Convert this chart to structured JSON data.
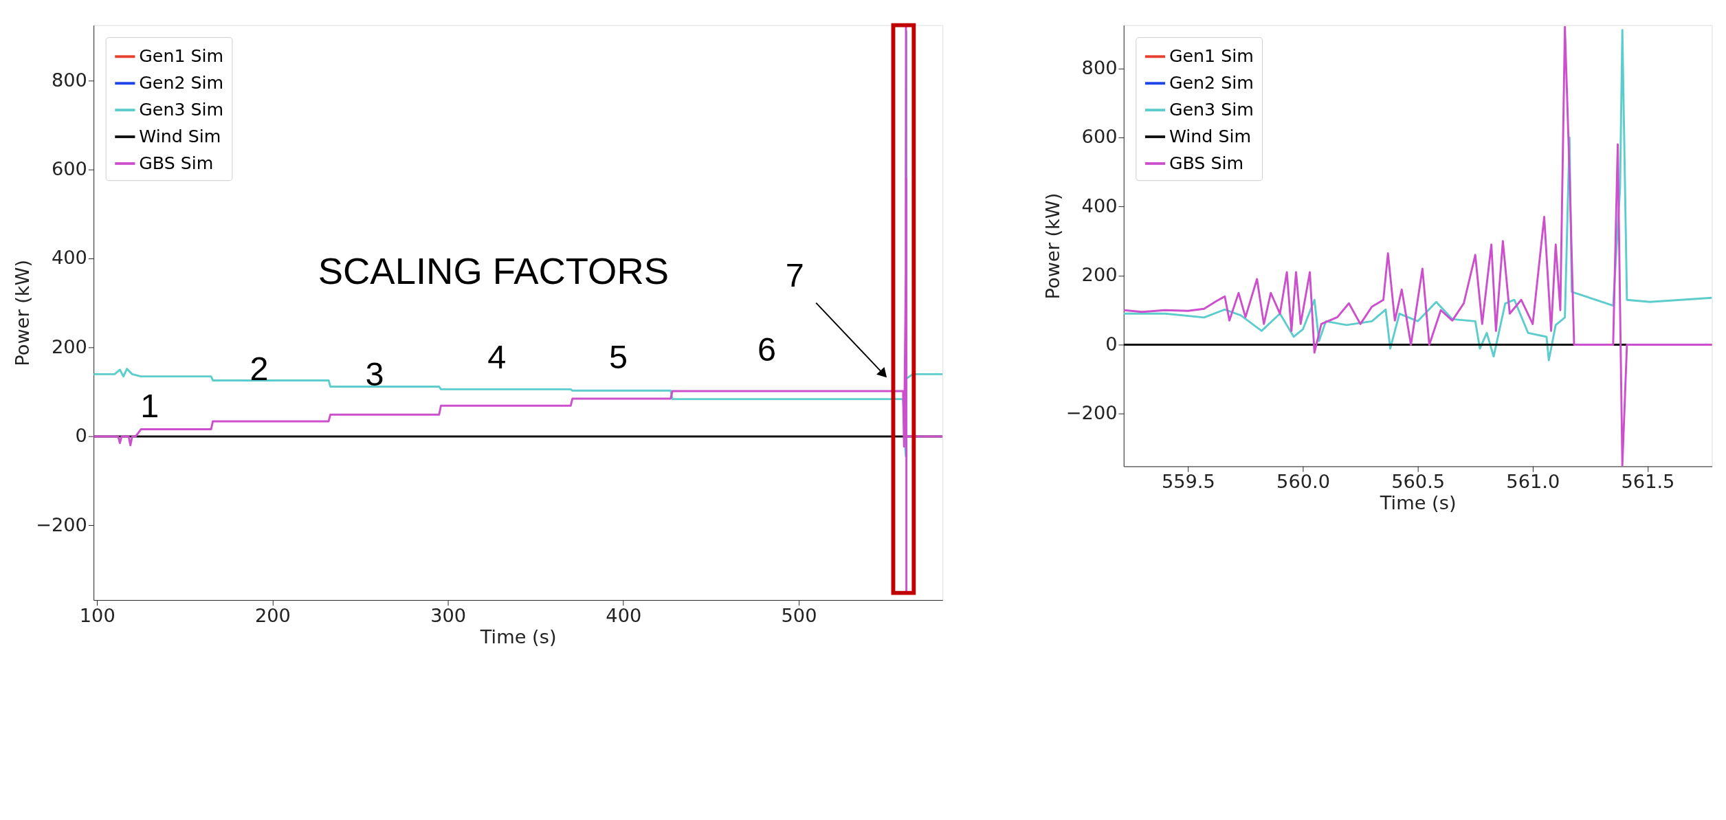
{
  "chart_data": [
    {
      "type": "line",
      "xlabel": "Time (s)",
      "ylabel": "Power (kW)",
      "xlim": [
        98,
        582
      ],
      "ylim": [
        -368,
        925
      ],
      "xticks": [
        100,
        200,
        300,
        400,
        500
      ],
      "yticks": [
        -200,
        0,
        200,
        400,
        600,
        800
      ],
      "grid": false,
      "legend": "top left",
      "marker": "none",
      "line_style": "solid",
      "annotations": [
        "SCALING FACTORS",
        "1",
        "2",
        "3",
        "4",
        "5",
        "6",
        "7"
      ],
      "series": [
        {
          "name": "Gen1 Sim",
          "color": "#e8402e"
        },
        {
          "name": "Gen2 Sim",
          "color": "#1f44e8"
        },
        {
          "name": "Gen3 Sim",
          "color": "#5ccccc",
          "x": [
            98,
            110,
            113,
            115,
            117,
            120,
            125,
            165,
            166,
            232,
            233,
            295,
            296,
            370,
            371,
            427,
            428,
            559.5,
            560.83,
            561.07,
            561.16,
            561.39,
            561.41,
            565,
            582
          ],
          "values": [
            140,
            140,
            150,
            135,
            152,
            140,
            135,
            135,
            126,
            126,
            112,
            112,
            106,
            106,
            103,
            103,
            84,
            84,
            -34,
            -45,
            600,
            911,
            130,
            140,
            140
          ]
        },
        {
          "name": "Wind Sim",
          "color": "#111111",
          "x": [
            98,
            582
          ],
          "values": [
            0,
            0
          ]
        },
        {
          "name": "GBS Sim",
          "color": "#cc4fcc",
          "x": [
            98,
            112,
            113,
            114,
            118,
            119,
            120,
            122,
            125,
            165,
            166,
            232,
            233,
            295,
            296,
            370,
            371,
            427,
            428,
            559.5,
            560.05,
            561.05,
            561.14,
            561.18,
            561.35,
            561.37,
            561.39,
            561.41,
            582
          ],
          "values": [
            0,
            0,
            -15,
            0,
            0,
            -20,
            0,
            0,
            16,
            16,
            34,
            34,
            49,
            49,
            69,
            69,
            85,
            85,
            102,
            102,
            -23,
            370,
            920,
            0,
            0,
            580,
            -350,
            0,
            0
          ]
        }
      ]
    },
    {
      "type": "line",
      "xlabel": "Time (s)",
      "ylabel": "Power (kW)",
      "xlim": [
        559.22,
        561.78
      ],
      "ylim": [
        -352,
        925
      ],
      "xticks": [
        559.5,
        {
          "value": 560,
          "label": "560.0"
        },
        560.5,
        {
          "value": 561,
          "label": "561.0"
        },
        561.5
      ],
      "yticks": [
        -200,
        0,
        200,
        400,
        600,
        800
      ],
      "grid": false,
      "legend": "top left",
      "marker": "none",
      "line_style": "solid",
      "series": [
        {
          "name": "Gen1 Sim",
          "color": "#e8402e"
        },
        {
          "name": "Gen2 Sim",
          "color": "#1f44e8"
        },
        {
          "name": "Gen3 Sim",
          "color": "#5ccccc",
          "x": [
            559.22,
            559.4,
            559.57,
            559.66,
            559.73,
            559.82,
            559.9,
            559.96,
            560.0,
            560.05,
            560.07,
            560.1,
            560.19,
            560.3,
            560.36,
            560.38,
            560.42,
            560.5,
            560.58,
            560.65,
            560.75,
            560.77,
            560.8,
            560.83,
            560.88,
            560.92,
            560.98,
            561.06,
            561.07,
            561.1,
            561.14,
            561.16,
            561.17,
            561.35,
            561.38,
            561.39,
            561.41,
            561.51,
            561.78
          ],
          "values": [
            90,
            90,
            79,
            102,
            85,
            40,
            90,
            23,
            45,
            130,
            11,
            68,
            57,
            68,
            102,
            -11,
            90,
            68,
            124,
            74,
            68,
            -11,
            34,
            -34,
            119,
            130,
            34,
            23,
            -45,
            57,
            79,
            600,
            153,
            113,
            452,
            911,
            130,
            124,
            136
          ]
        },
        {
          "name": "Wind Sim",
          "color": "#111111",
          "x": [
            559.22,
            561.78
          ],
          "values": [
            0,
            0
          ]
        },
        {
          "name": "GBS Sim",
          "color": "#cc4fcc",
          "x": [
            559.22,
            559.3,
            559.4,
            559.5,
            559.57,
            559.62,
            559.66,
            559.68,
            559.72,
            559.75,
            559.8,
            559.83,
            559.86,
            559.9,
            559.93,
            559.95,
            559.97,
            559.99,
            560.03,
            560.05,
            560.08,
            560.15,
            560.2,
            560.25,
            560.3,
            560.35,
            560.37,
            560.4,
            560.43,
            560.47,
            560.52,
            560.55,
            560.6,
            560.65,
            560.7,
            560.75,
            560.78,
            560.82,
            560.84,
            560.87,
            560.9,
            560.95,
            561.0,
            561.05,
            561.08,
            561.1,
            561.12,
            561.14,
            561.16,
            561.18,
            561.35,
            561.37,
            561.39,
            561.41,
            561.78
          ],
          "values": [
            100,
            95,
            100,
            98,
            104,
            125,
            140,
            70,
            150,
            80,
            190,
            60,
            150,
            90,
            210,
            40,
            210,
            60,
            210,
            -23,
            60,
            80,
            120,
            60,
            110,
            130,
            265,
            70,
            160,
            0,
            220,
            0,
            100,
            70,
            120,
            260,
            60,
            290,
            40,
            300,
            90,
            130,
            60,
            370,
            40,
            290,
            100,
            920,
            500,
            0,
            0,
            580,
            -350,
            0,
            0
          ]
        }
      ]
    }
  ]
}
